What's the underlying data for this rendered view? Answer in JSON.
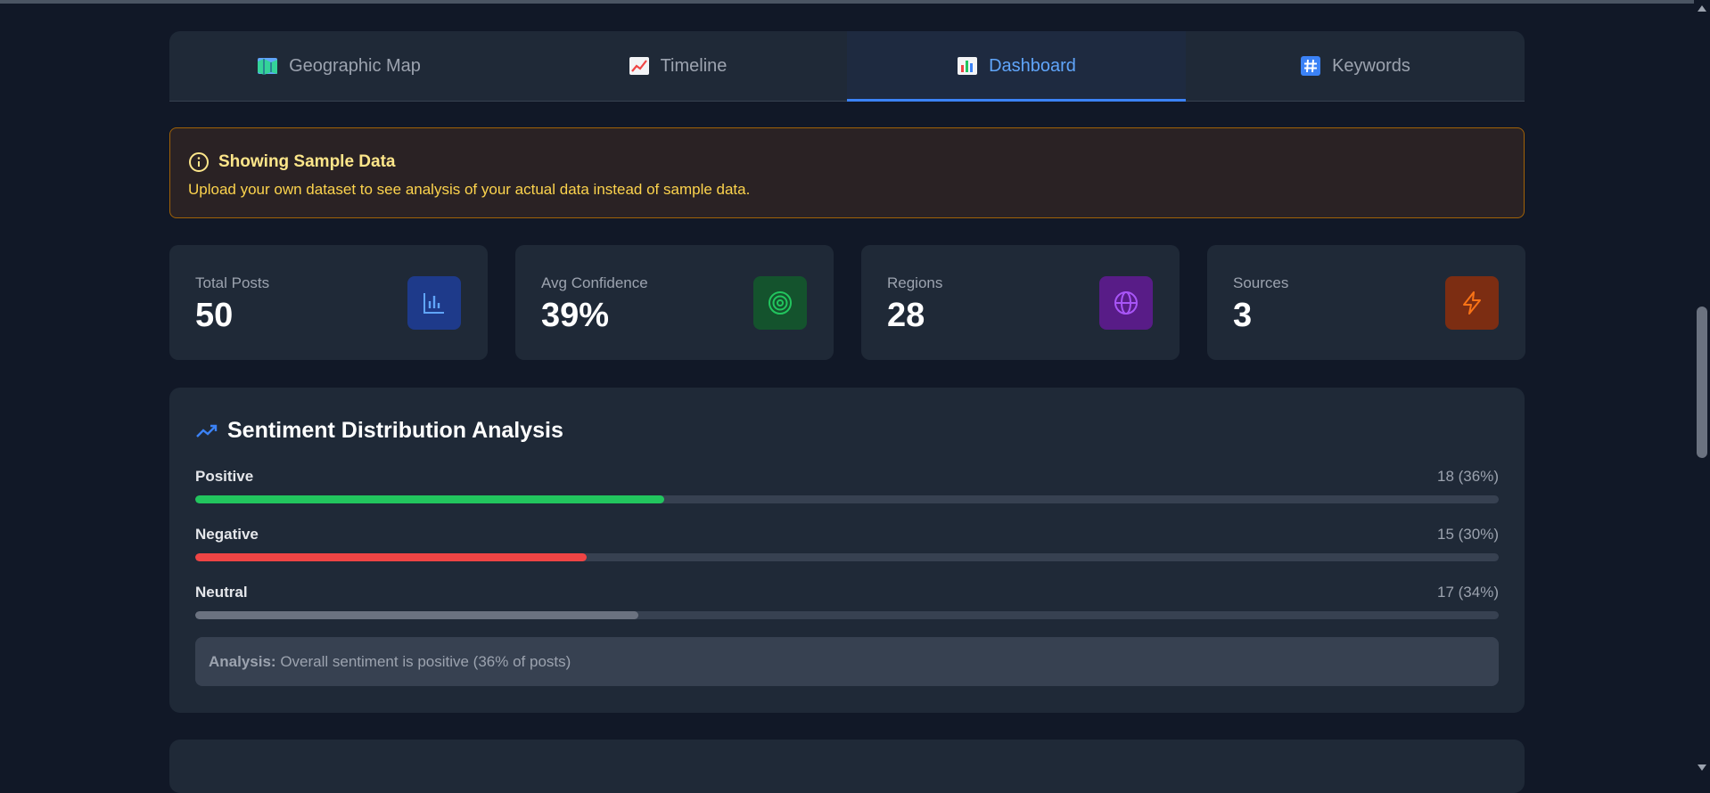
{
  "tabs": [
    {
      "label": "Geographic Map",
      "icon": "map-icon",
      "active": false
    },
    {
      "label": "Timeline",
      "icon": "chart-increasing-icon",
      "active": false
    },
    {
      "label": "Dashboard",
      "icon": "bar-chart-icon",
      "active": true
    },
    {
      "label": "Keywords",
      "icon": "hashtag-icon",
      "active": false
    }
  ],
  "notice": {
    "title": "Showing Sample Data",
    "text": "Upload your own dataset to see analysis of your actual data instead of sample data."
  },
  "stats": [
    {
      "label": "Total Posts",
      "value": "50",
      "icon": "bar-chart-icon",
      "color": "#1e3a8a"
    },
    {
      "label": "Avg Confidence",
      "value": "39%",
      "icon": "target-icon",
      "color": "#14532d"
    },
    {
      "label": "Regions",
      "value": "28",
      "icon": "globe-icon",
      "color": "#581c87"
    },
    {
      "label": "Sources",
      "value": "3",
      "icon": "lightning-icon",
      "color": "#7c2d12"
    }
  ],
  "sentiment": {
    "title": "Sentiment Distribution Analysis",
    "rows": [
      {
        "label": "Positive",
        "value_text": "18 (36%)",
        "fraction": 0.36,
        "color": "#22c55e"
      },
      {
        "label": "Negative",
        "value_text": "15 (30%)",
        "fraction": 0.3,
        "color": "#ef4444"
      },
      {
        "label": "Neutral",
        "value_text": "17 (34%)",
        "fraction": 0.34,
        "color": "#6b7280"
      }
    ],
    "analysis_label": "Analysis:",
    "analysis_text": " Overall sentiment is positive (36% of posts)"
  },
  "colors": {
    "accent": "#3b82f6",
    "warning_border": "#a16207"
  }
}
